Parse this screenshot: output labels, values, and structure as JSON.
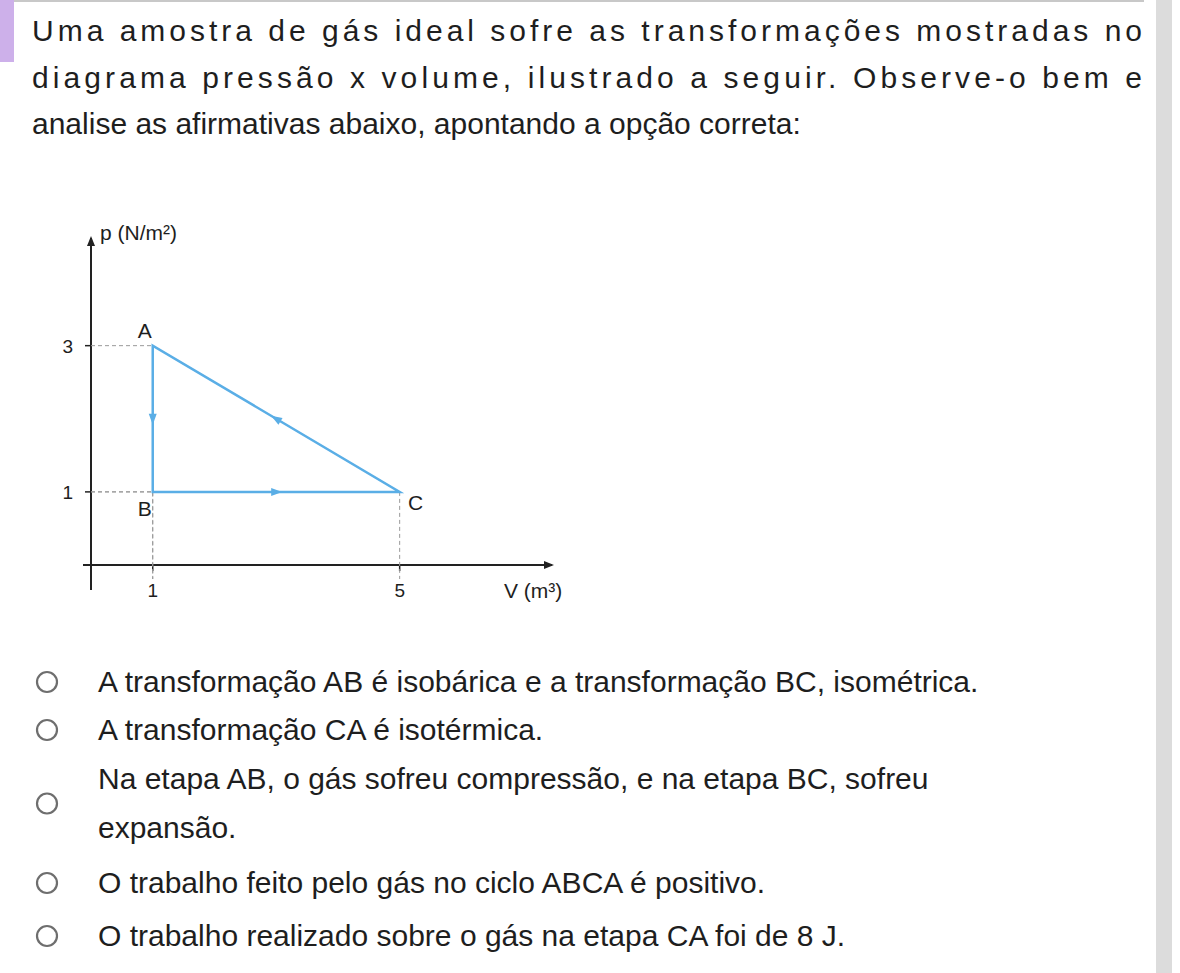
{
  "question_lines": [
    "Uma amostra de gás ideal sofre as transformações mostradas no",
    "diagrama pressão x volume, ilustrado a seguir. Observe-o bem e",
    "analise as afirmativas abaixo, apontando a opção correta:"
  ],
  "chart_data": {
    "type": "line",
    "x_label": "V (m³)",
    "y_label": "p (N/m²)",
    "point_labels": [
      "A",
      "B",
      "C"
    ],
    "x": [
      1,
      1,
      5
    ],
    "values": [
      3,
      1,
      1
    ],
    "xlim": [
      0,
      7.5
    ],
    "ylim": [
      0,
      4.5
    ],
    "xticks": [
      1,
      5
    ],
    "yticks": [
      1,
      3
    ],
    "color": "#5aaee6",
    "grid": false,
    "marker": "none",
    "line_style": "solid"
  },
  "options": [
    [
      "A transformação AB é isobárica e a transformação BC, isométrica."
    ],
    [
      "A transformação CA é isotérmica."
    ],
    [
      "Na etapa AB, o gás sofreu compressão, e na etapa BC, sofreu",
      "expansão."
    ],
    [
      "O trabalho feito pelo gás no ciclo ABCA é positivo."
    ],
    [
      "O trabalho realizado sobre o gás na etapa CA foi de 8 J."
    ]
  ]
}
